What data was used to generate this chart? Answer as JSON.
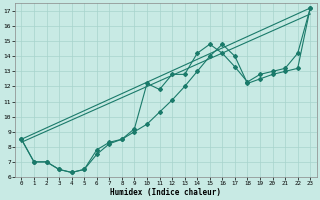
{
  "xlabel": "Humidex (Indice chaleur)",
  "xlim": [
    -0.5,
    23.5
  ],
  "ylim": [
    6,
    17.5
  ],
  "xticks": [
    0,
    1,
    2,
    3,
    4,
    5,
    6,
    7,
    8,
    9,
    10,
    11,
    12,
    13,
    14,
    15,
    16,
    17,
    18,
    19,
    20,
    21,
    22,
    23
  ],
  "yticks": [
    6,
    7,
    8,
    9,
    10,
    11,
    12,
    13,
    14,
    15,
    16,
    17
  ],
  "background_color": "#c8eae4",
  "grid_color": "#a8d4cc",
  "line_color": "#1a7a6a",
  "series_jagged1": {
    "x": [
      0,
      1,
      2,
      3,
      4,
      5,
      6,
      7,
      8,
      9,
      10,
      11,
      12,
      13,
      14,
      15,
      16,
      17,
      18,
      19,
      20,
      21,
      22,
      23
    ],
    "y": [
      8.5,
      7.0,
      7.0,
      6.5,
      6.3,
      6.5,
      7.5,
      8.2,
      8.5,
      9.2,
      12.2,
      11.8,
      12.8,
      12.8,
      14.2,
      14.8,
      14.2,
      13.3,
      12.3,
      12.8,
      13.0,
      13.2,
      14.2,
      17.2
    ]
  },
  "series_jagged2": {
    "x": [
      0,
      1,
      2,
      3,
      4,
      5,
      6,
      7,
      8,
      9,
      10,
      11,
      12,
      13,
      14,
      15,
      16,
      17,
      18,
      19,
      20,
      21,
      22,
      23
    ],
    "y": [
      8.5,
      7.0,
      7.0,
      6.5,
      6.3,
      6.5,
      7.8,
      8.3,
      8.5,
      9.0,
      9.5,
      10.3,
      11.1,
      12.0,
      13.0,
      14.0,
      14.8,
      14.0,
      12.2,
      12.5,
      12.8,
      13.0,
      13.2,
      17.2
    ]
  },
  "series_line1": {
    "x": [
      0,
      23
    ],
    "y": [
      8.5,
      17.2
    ]
  },
  "series_line2": {
    "x": [
      0,
      23
    ],
    "y": [
      8.3,
      16.8
    ]
  }
}
